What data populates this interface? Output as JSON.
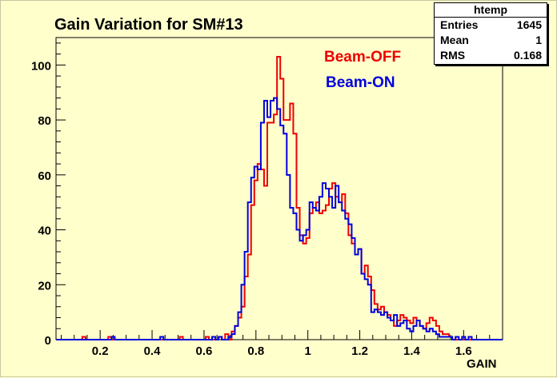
{
  "chart_data": {
    "type": "histogram",
    "title": "Gain Variation for SM#13",
    "xlabel": "GAIN",
    "ylabel": "",
    "xlim": [
      0.03,
      1.75
    ],
    "ylim": [
      0,
      110
    ],
    "xticks": [
      0.2,
      0.4,
      0.6,
      0.8,
      1.0,
      1.2,
      1.4,
      1.6
    ],
    "xtick_labels": [
      "0.2",
      "0.4",
      "0.6",
      "0.8",
      "1",
      "1.2",
      "1.4",
      "1.6"
    ],
    "yticks": [
      0,
      20,
      40,
      60,
      80,
      100
    ],
    "ytick_labels": [
      "0",
      "20",
      "40",
      "60",
      "80",
      "100"
    ],
    "bin_width": 0.0125,
    "series": [
      {
        "name": "Beam-OFF",
        "color": "#ee0000",
        "points": [
          [
            0.1375,
            1
          ],
          [
            0.2375,
            1
          ],
          [
            0.5125,
            1
          ],
          [
            0.6125,
            1
          ],
          [
            0.6625,
            1
          ],
          [
            0.6875,
            2
          ],
          [
            0.7125,
            3
          ],
          [
            0.725,
            5
          ],
          [
            0.7375,
            8
          ],
          [
            0.75,
            12
          ],
          [
            0.7625,
            23
          ],
          [
            0.775,
            31
          ],
          [
            0.7875,
            49
          ],
          [
            0.8,
            58
          ],
          [
            0.8125,
            64
          ],
          [
            0.825,
            62
          ],
          [
            0.8375,
            56
          ],
          [
            0.85,
            79
          ],
          [
            0.8625,
            79
          ],
          [
            0.875,
            82
          ],
          [
            0.8875,
            103
          ],
          [
            0.9,
            95
          ],
          [
            0.9125,
            80
          ],
          [
            0.925,
            80
          ],
          [
            0.9375,
            86
          ],
          [
            0.95,
            75
          ],
          [
            0.9625,
            48
          ],
          [
            0.975,
            38
          ],
          [
            0.9875,
            35
          ],
          [
            1.0,
            37
          ],
          [
            1.0125,
            46
          ],
          [
            1.025,
            48
          ],
          [
            1.0375,
            50
          ],
          [
            1.05,
            46
          ],
          [
            1.0625,
            47
          ],
          [
            1.075,
            49
          ],
          [
            1.0875,
            55
          ],
          [
            1.1,
            57
          ],
          [
            1.1125,
            52
          ],
          [
            1.125,
            50
          ],
          [
            1.1375,
            53
          ],
          [
            1.15,
            46
          ],
          [
            1.1625,
            38
          ],
          [
            1.175,
            35
          ],
          [
            1.1875,
            31
          ],
          [
            1.2,
            33
          ],
          [
            1.2125,
            24
          ],
          [
            1.225,
            27
          ],
          [
            1.2375,
            23
          ],
          [
            1.25,
            18
          ],
          [
            1.2625,
            13
          ],
          [
            1.275,
            11
          ],
          [
            1.2875,
            12
          ],
          [
            1.3,
            10
          ],
          [
            1.3125,
            9
          ],
          [
            1.325,
            7
          ],
          [
            1.3375,
            5
          ],
          [
            1.35,
            7
          ],
          [
            1.3625,
            9
          ],
          [
            1.375,
            8
          ],
          [
            1.3875,
            7
          ],
          [
            1.4,
            6
          ],
          [
            1.4125,
            8
          ],
          [
            1.425,
            7
          ],
          [
            1.4375,
            5
          ],
          [
            1.45,
            4
          ],
          [
            1.4625,
            6
          ],
          [
            1.475,
            8
          ],
          [
            1.4875,
            7
          ],
          [
            1.5,
            5
          ],
          [
            1.5125,
            3
          ],
          [
            1.525,
            2
          ],
          [
            1.5375,
            2
          ],
          [
            1.55,
            1
          ]
        ]
      },
      {
        "name": "Beam-ON",
        "color": "#0000dd",
        "points": [
          [
            0.25,
            1
          ],
          [
            0.4375,
            1
          ],
          [
            0.6375,
            1
          ],
          [
            0.6625,
            1
          ],
          [
            0.7,
            1
          ],
          [
            0.7125,
            2
          ],
          [
            0.725,
            5
          ],
          [
            0.7375,
            10
          ],
          [
            0.75,
            20
          ],
          [
            0.7625,
            32
          ],
          [
            0.775,
            50
          ],
          [
            0.7875,
            59
          ],
          [
            0.8,
            63
          ],
          [
            0.8125,
            62
          ],
          [
            0.825,
            79
          ],
          [
            0.8375,
            87
          ],
          [
            0.85,
            81
          ],
          [
            0.8625,
            87
          ],
          [
            0.875,
            88
          ],
          [
            0.8875,
            84
          ],
          [
            0.9,
            78
          ],
          [
            0.9125,
            75
          ],
          [
            0.925,
            60
          ],
          [
            0.9375,
            48
          ],
          [
            0.95,
            46
          ],
          [
            0.9625,
            40
          ],
          [
            0.975,
            36
          ],
          [
            0.9875,
            38
          ],
          [
            1.0,
            40
          ],
          [
            1.0125,
            50
          ],
          [
            1.025,
            48
          ],
          [
            1.0375,
            47
          ],
          [
            1.05,
            52
          ],
          [
            1.0625,
            57
          ],
          [
            1.075,
            55
          ],
          [
            1.0875,
            52
          ],
          [
            1.1,
            48
          ],
          [
            1.1125,
            56
          ],
          [
            1.125,
            50
          ],
          [
            1.1375,
            47
          ],
          [
            1.15,
            44
          ],
          [
            1.1625,
            42
          ],
          [
            1.175,
            37
          ],
          [
            1.1875,
            31
          ],
          [
            1.2,
            33
          ],
          [
            1.2125,
            24
          ],
          [
            1.225,
            22
          ],
          [
            1.2375,
            20
          ],
          [
            1.25,
            10
          ],
          [
            1.2625,
            11
          ],
          [
            1.275,
            10
          ],
          [
            1.2875,
            9
          ],
          [
            1.3,
            10
          ],
          [
            1.3125,
            8
          ],
          [
            1.325,
            7
          ],
          [
            1.3375,
            9
          ],
          [
            1.35,
            5
          ],
          [
            1.3625,
            6
          ],
          [
            1.375,
            7
          ],
          [
            1.3875,
            4
          ],
          [
            1.4,
            3
          ],
          [
            1.4125,
            5
          ],
          [
            1.425,
            7
          ],
          [
            1.4375,
            5
          ],
          [
            1.45,
            4
          ],
          [
            1.4625,
            3
          ],
          [
            1.475,
            4
          ],
          [
            1.4875,
            3
          ],
          [
            1.5,
            2
          ],
          [
            1.5125,
            1
          ],
          [
            1.525,
            1
          ],
          [
            1.5375,
            1
          ],
          [
            1.55,
            1
          ],
          [
            1.575,
            1
          ],
          [
            1.6,
            1
          ],
          [
            1.625,
            1
          ]
        ]
      }
    ]
  },
  "stats_box": {
    "name": "htemp",
    "rows": [
      {
        "label": "Entries",
        "value": "1645"
      },
      {
        "label": "Mean",
        "value": "1"
      },
      {
        "label": "RMS",
        "value": "0.168"
      }
    ]
  }
}
